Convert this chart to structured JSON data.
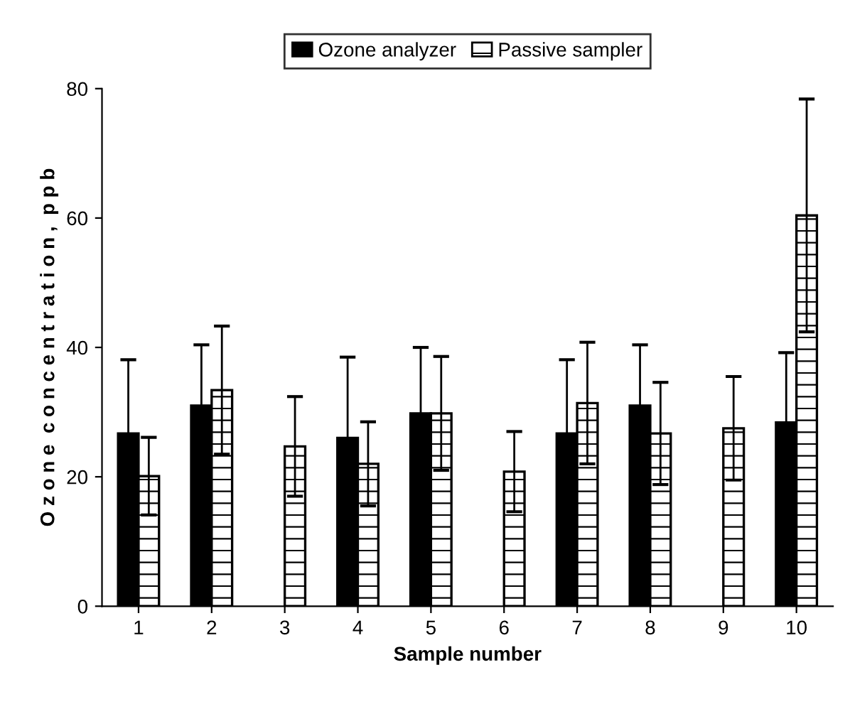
{
  "chart_data": {
    "type": "bar",
    "xlabel": "Sample number",
    "ylabel": "O z o n e  c o n c e n t r a t i o n ,  p p b",
    "categories": [
      "1",
      "2",
      "3",
      "4",
      "5",
      "6",
      "7",
      "8",
      "9",
      "10"
    ],
    "series": [
      {
        "name": "Ozone analyzer",
        "color": "#000000",
        "values": [
          26.7,
          31.0,
          null,
          26.0,
          29.8,
          null,
          26.7,
          31.0,
          null,
          28.4
        ],
        "errors": [
          11.4,
          9.4,
          null,
          12.5,
          10.2,
          null,
          11.4,
          9.4,
          null,
          10.8
        ]
      },
      {
        "name": "Passive sampler",
        "color": "#ffffff",
        "values": [
          20.1,
          33.4,
          24.7,
          22.0,
          29.8,
          20.8,
          31.4,
          26.7,
          27.5,
          60.4
        ],
        "errors": [
          6.0,
          9.9,
          7.7,
          6.5,
          8.8,
          6.2,
          9.4,
          7.9,
          8.0,
          18.0
        ]
      }
    ],
    "ylim": [
      0,
      80
    ],
    "yticks": [
      0,
      20,
      40,
      60,
      80
    ],
    "grid": false,
    "legend": "top"
  }
}
